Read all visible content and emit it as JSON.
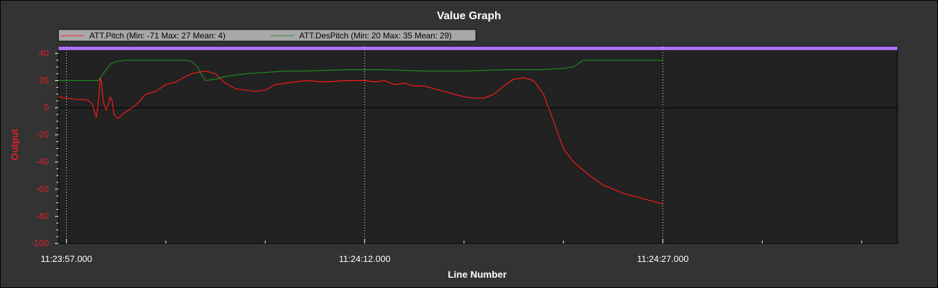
{
  "window": {
    "title": "Value Graph"
  },
  "chart_data": {
    "type": "line",
    "title": "Value Graph",
    "xlabel": "Line Number",
    "ylabel": "Output",
    "ylim": [
      -100,
      45
    ],
    "yticks": [
      40,
      20,
      0,
      -20,
      -40,
      -60,
      -80,
      -100
    ],
    "xlim_seconds": [
      -0.4,
      41.8
    ],
    "xticks": [
      {
        "t": 0,
        "label": "11:23:57.000"
      },
      {
        "t": 15,
        "label": "11:24:12.000"
      },
      {
        "t": 30,
        "label": "11:24:27.000"
      }
    ],
    "legend_position": "top-left",
    "grid": true,
    "series": [
      {
        "name": "ATT.Pitch",
        "legend": "ATT.Pitch (Min: -71 Max: 27 Mean: 4)",
        "color": "#ff1a1a",
        "x": [
          -0.4,
          0.5,
          1.0,
          1.3,
          1.4,
          1.5,
          1.6,
          1.7,
          1.75,
          1.85,
          2.0,
          2.1,
          2.2,
          2.3,
          2.4,
          2.6,
          2.8,
          3.0,
          3.5,
          4.0,
          4.5,
          5.0,
          5.5,
          6.0,
          6.3,
          6.6,
          7.0,
          7.5,
          8.0,
          8.5,
          9.0,
          9.5,
          10.0,
          10.5,
          11.0,
          12.0,
          13.0,
          14.0,
          14.5,
          15.0,
          15.5,
          16.0,
          16.5,
          17.0,
          17.5,
          18.0,
          18.5,
          19.0,
          19.5,
          20.0,
          20.5,
          21.0,
          21.5,
          22.0,
          22.5,
          23.0,
          23.5,
          24.0,
          24.5,
          25.0,
          25.5,
          26.0,
          26.5,
          27.0,
          27.5,
          28.0,
          28.5,
          29.0,
          29.5,
          30.0
        ],
        "y": [
          8,
          6,
          6,
          3,
          -2,
          -7,
          2,
          22,
          20,
          5,
          -2,
          2,
          8,
          5,
          -5,
          -8,
          -5,
          -3,
          2,
          10,
          12,
          17,
          19,
          23,
          25,
          26,
          27,
          25,
          18,
          14,
          13,
          12,
          13,
          17,
          18,
          20,
          19,
          20,
          20,
          20,
          19,
          20,
          17,
          18,
          16,
          16,
          14,
          12,
          10,
          8,
          7,
          7,
          10,
          16,
          21,
          22,
          20,
          10,
          -10,
          -30,
          -40,
          -46,
          -52,
          -57,
          -60,
          -63,
          -65,
          -67,
          -69,
          -71
        ]
      },
      {
        "name": "ATT.DesPitch",
        "legend": "ATT.DesPitch (Min: 20 Max: 35 Mean: 29)",
        "color": "#1f8a1f",
        "x": [
          -0.4,
          1.2,
          1.6,
          2.0,
          2.2,
          2.5,
          3.0,
          4.5,
          6.0,
          6.3,
          6.6,
          6.8,
          7.0,
          7.5,
          8.0,
          9.0,
          10.0,
          11.0,
          12.0,
          14.0,
          16.0,
          18.0,
          20.0,
          22.0,
          24.0,
          25.0,
          25.5,
          26.0,
          28.0,
          30.0
        ],
        "y": [
          20,
          20,
          20,
          28,
          32,
          34,
          35,
          35,
          35,
          34,
          30,
          24,
          20,
          21,
          23,
          25,
          26,
          27,
          27,
          28,
          28,
          27,
          27,
          28,
          28,
          29,
          30,
          35,
          35,
          35
        ]
      }
    ],
    "reference_band_color": "#b070ff"
  }
}
